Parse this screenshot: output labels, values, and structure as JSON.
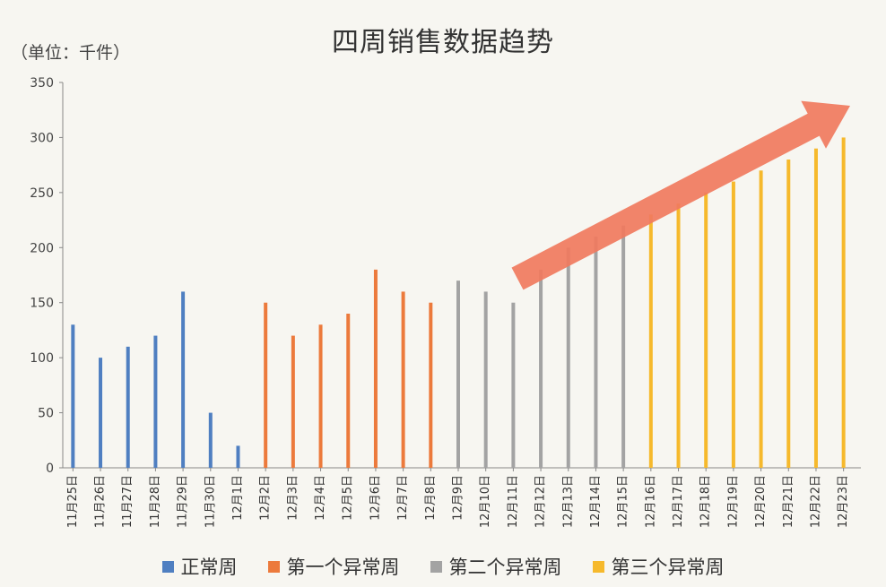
{
  "chart_data": {
    "type": "bar",
    "title": "四周销售数据趋势",
    "unit_label": "（单位：千件）",
    "ylim": [
      0,
      350
    ],
    "yticks": [
      0,
      50,
      100,
      150,
      200,
      250,
      300,
      350
    ],
    "grid": false,
    "legend_position": "bottom",
    "trend_arrow": "increasing",
    "categories": [
      "11月25日",
      "11月26日",
      "11月27日",
      "11月28日",
      "11月29日",
      "11月30日",
      "12月1日",
      "12月2日",
      "12月3日",
      "12月4日",
      "12月5日",
      "12月6日",
      "12月7日",
      "12月8日",
      "12月9日",
      "12月10日",
      "12月11日",
      "12月12日",
      "12月13日",
      "12月14日",
      "12月15日",
      "12月16日",
      "12月17日",
      "12月18日",
      "12月19日",
      "12月20日",
      "12月21日",
      "12月22日",
      "12月23日"
    ],
    "values": [
      130,
      100,
      110,
      120,
      160,
      50,
      20,
      150,
      120,
      130,
      140,
      180,
      160,
      150,
      170,
      160,
      150,
      180,
      200,
      210,
      220,
      230,
      240,
      250,
      260,
      270,
      280,
      290,
      300
    ],
    "groups": [
      {
        "name": "正常周",
        "color": "#4f7fc1",
        "count": 7
      },
      {
        "name": "第一个异常周",
        "color": "#ec7a3c",
        "count": 7
      },
      {
        "name": "第二个异常周",
        "color": "#a3a3a3",
        "count": 7
      },
      {
        "name": "第三个异常周",
        "color": "#f6b92c",
        "count": 8
      }
    ],
    "arrow_color": "#f07a5e"
  }
}
